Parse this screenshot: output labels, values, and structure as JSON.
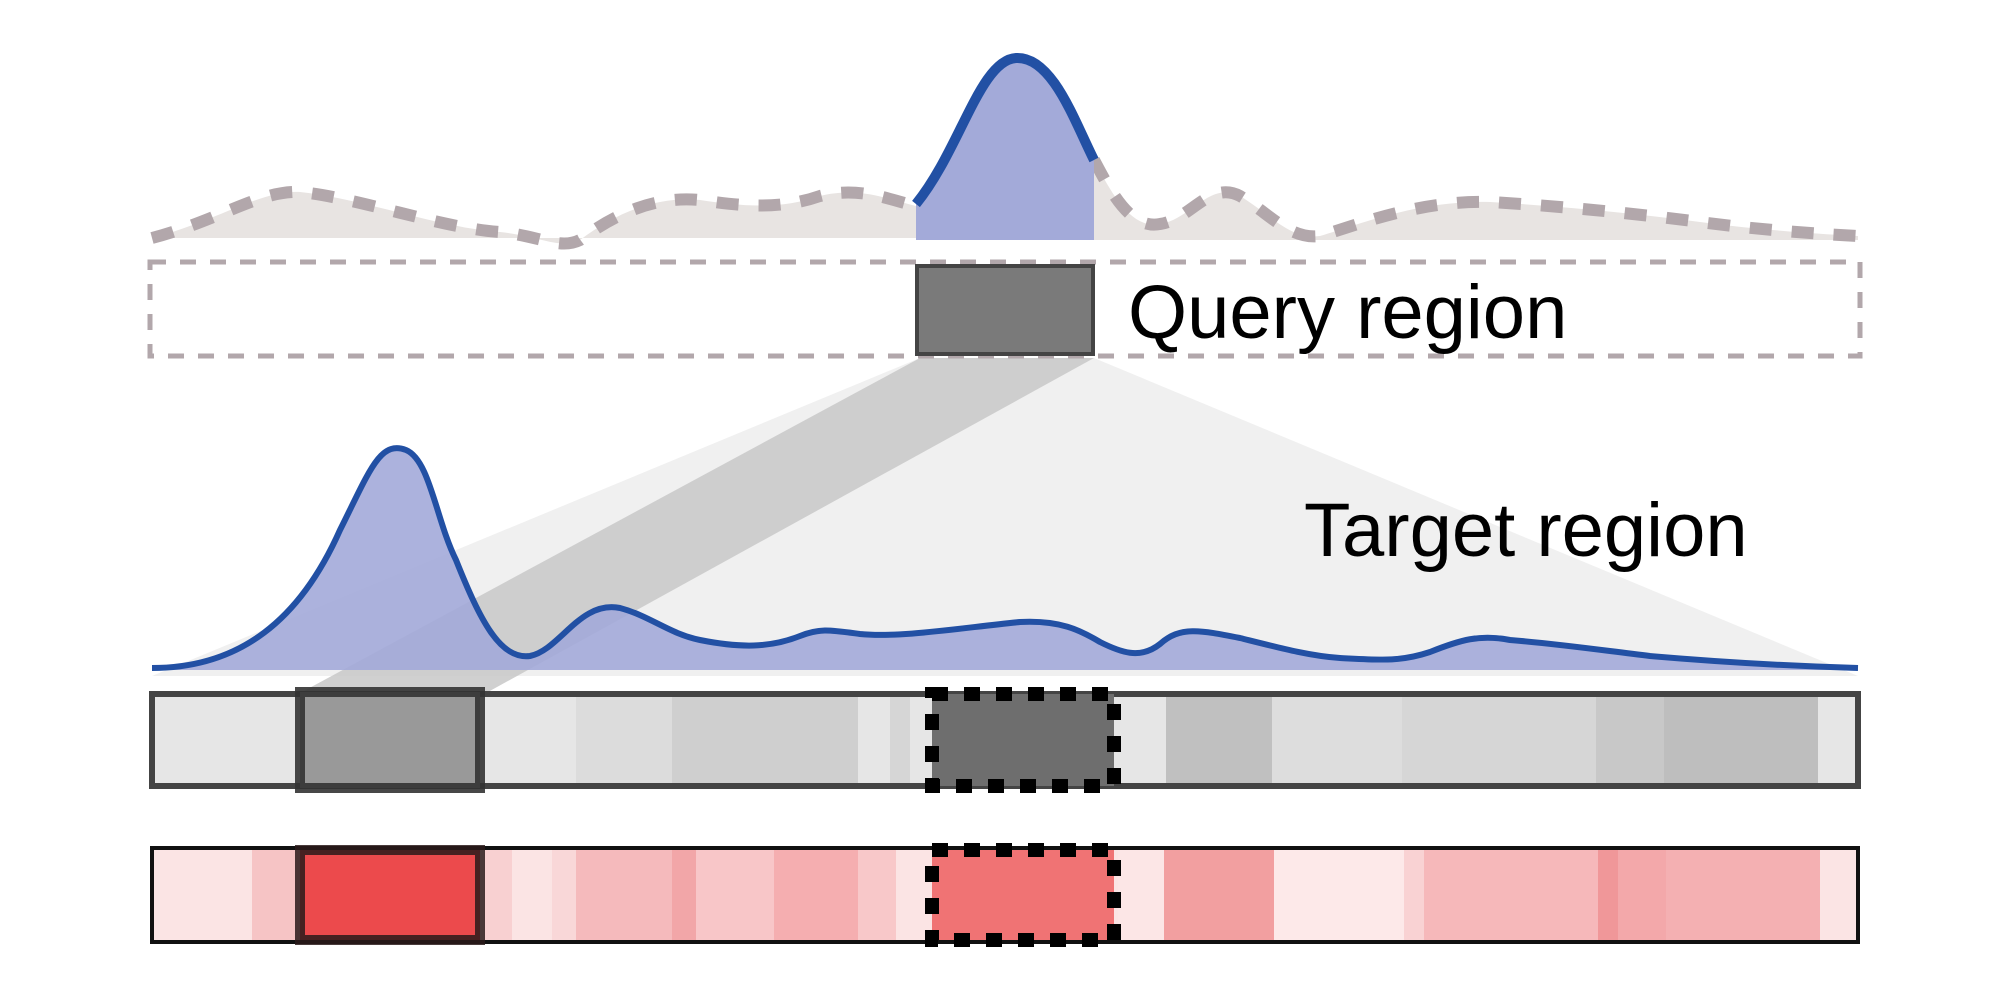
{
  "labels": {
    "query": "Query region",
    "target": "Target region"
  },
  "colors": {
    "signal_line": "#2250A4",
    "signal_fill": "#A3AAD9",
    "background_signal_dash": "#B2A7AB",
    "background_signal_fill": "#E8E4E2",
    "query_box_fill": "#7A7A7A",
    "query_box_stroke": "#444444",
    "target_track_border": "#444444",
    "highlight_fill_gray": "#999999",
    "highlight_fill_red": "#EC4A4C",
    "dotted_box_stroke": "#000000",
    "projection_light": "#F0F0F0",
    "projection_dark": "#C8C8C8",
    "red_track_border": "#111111"
  }
}
